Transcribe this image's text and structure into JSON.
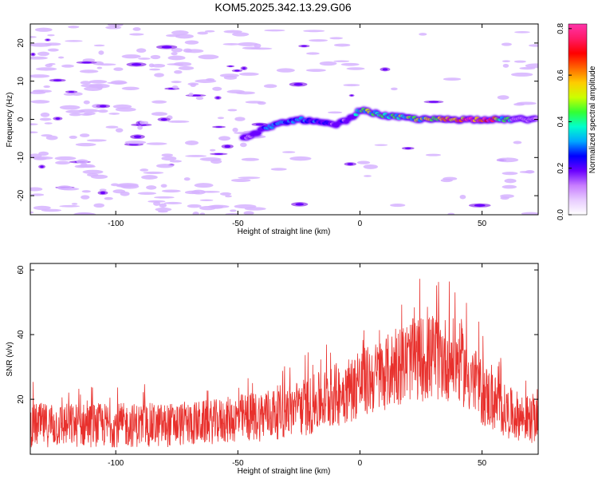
{
  "title": "KOM5.2025.342.13.29.G06",
  "colors": {
    "snr_line": "#e8302c",
    "axis": "#000000",
    "colorbar_stops": [
      "#ffffff",
      "#e8ccff",
      "#c77dff",
      "#6a00ff",
      "#0000ff",
      "#00a8ff",
      "#00ffcc",
      "#33ff33",
      "#ccff00",
      "#ffcc00",
      "#ff6600",
      "#ff0000",
      "#ff1a66",
      "#ff33aa"
    ]
  },
  "chart_data": [
    {
      "type": "heatmap",
      "xlabel": "Height of straight line (km)",
      "ylabel": "Frequency (Hz)",
      "xlim": [
        -135,
        73
      ],
      "ylim": [
        -25,
        25
      ],
      "xticks": [
        -100,
        -50,
        0,
        50
      ],
      "yticks": [
        -20,
        -10,
        0,
        10,
        20
      ],
      "colorbar": {
        "label": "Normalized spectral amplitude",
        "range": [
          0,
          0.82
        ],
        "ticks": [
          "0.0",
          "0.2",
          "0.4",
          "0.6",
          "0.8"
        ]
      },
      "features": [
        {
          "x": -45,
          "y": -4.5,
          "amp": 0.15
        },
        {
          "x": -38,
          "y": -2.0,
          "amp": 0.28
        },
        {
          "x": -25,
          "y": 0.0,
          "amp": 0.35
        },
        {
          "x": -10,
          "y": -1.5,
          "amp": 0.18
        },
        {
          "x": -3,
          "y": 0.5,
          "amp": 0.22
        },
        {
          "x": 0,
          "y": 2.5,
          "amp": 0.45
        },
        {
          "x": 10,
          "y": 1.0,
          "amp": 0.4
        },
        {
          "x": 25,
          "y": 0.0,
          "amp": 0.45
        },
        {
          "x": 38,
          "y": 0.0,
          "amp": 0.65
        },
        {
          "x": 50,
          "y": 0.0,
          "amp": 0.8
        },
        {
          "x": 60,
          "y": 0.0,
          "amp": 0.4
        }
      ]
    },
    {
      "type": "line",
      "xlabel": "Height of straight line (km)",
      "ylabel": "SNR (v/v)",
      "xlim": [
        -135,
        73
      ],
      "ylim": [
        3,
        62
      ],
      "xticks": [
        -100,
        -50,
        0,
        50
      ],
      "yticks": [
        20,
        40,
        60
      ],
      "series": [
        {
          "envelope": {
            "x": [
              -135,
              -110,
              -80,
              -60,
              -40,
              -20,
              -5,
              10,
              20,
              30,
              40,
              50,
              60,
              73
            ],
            "mean": [
              12,
              12,
              12,
              13,
              15,
              18,
              23,
              28,
              32,
              33,
              32,
              22,
              16,
              13
            ],
            "spread": [
              6,
              6,
              6,
              6,
              7,
              8,
              9,
              10,
              11,
              12,
              11,
              9,
              7,
              6
            ]
          }
        }
      ]
    }
  ]
}
